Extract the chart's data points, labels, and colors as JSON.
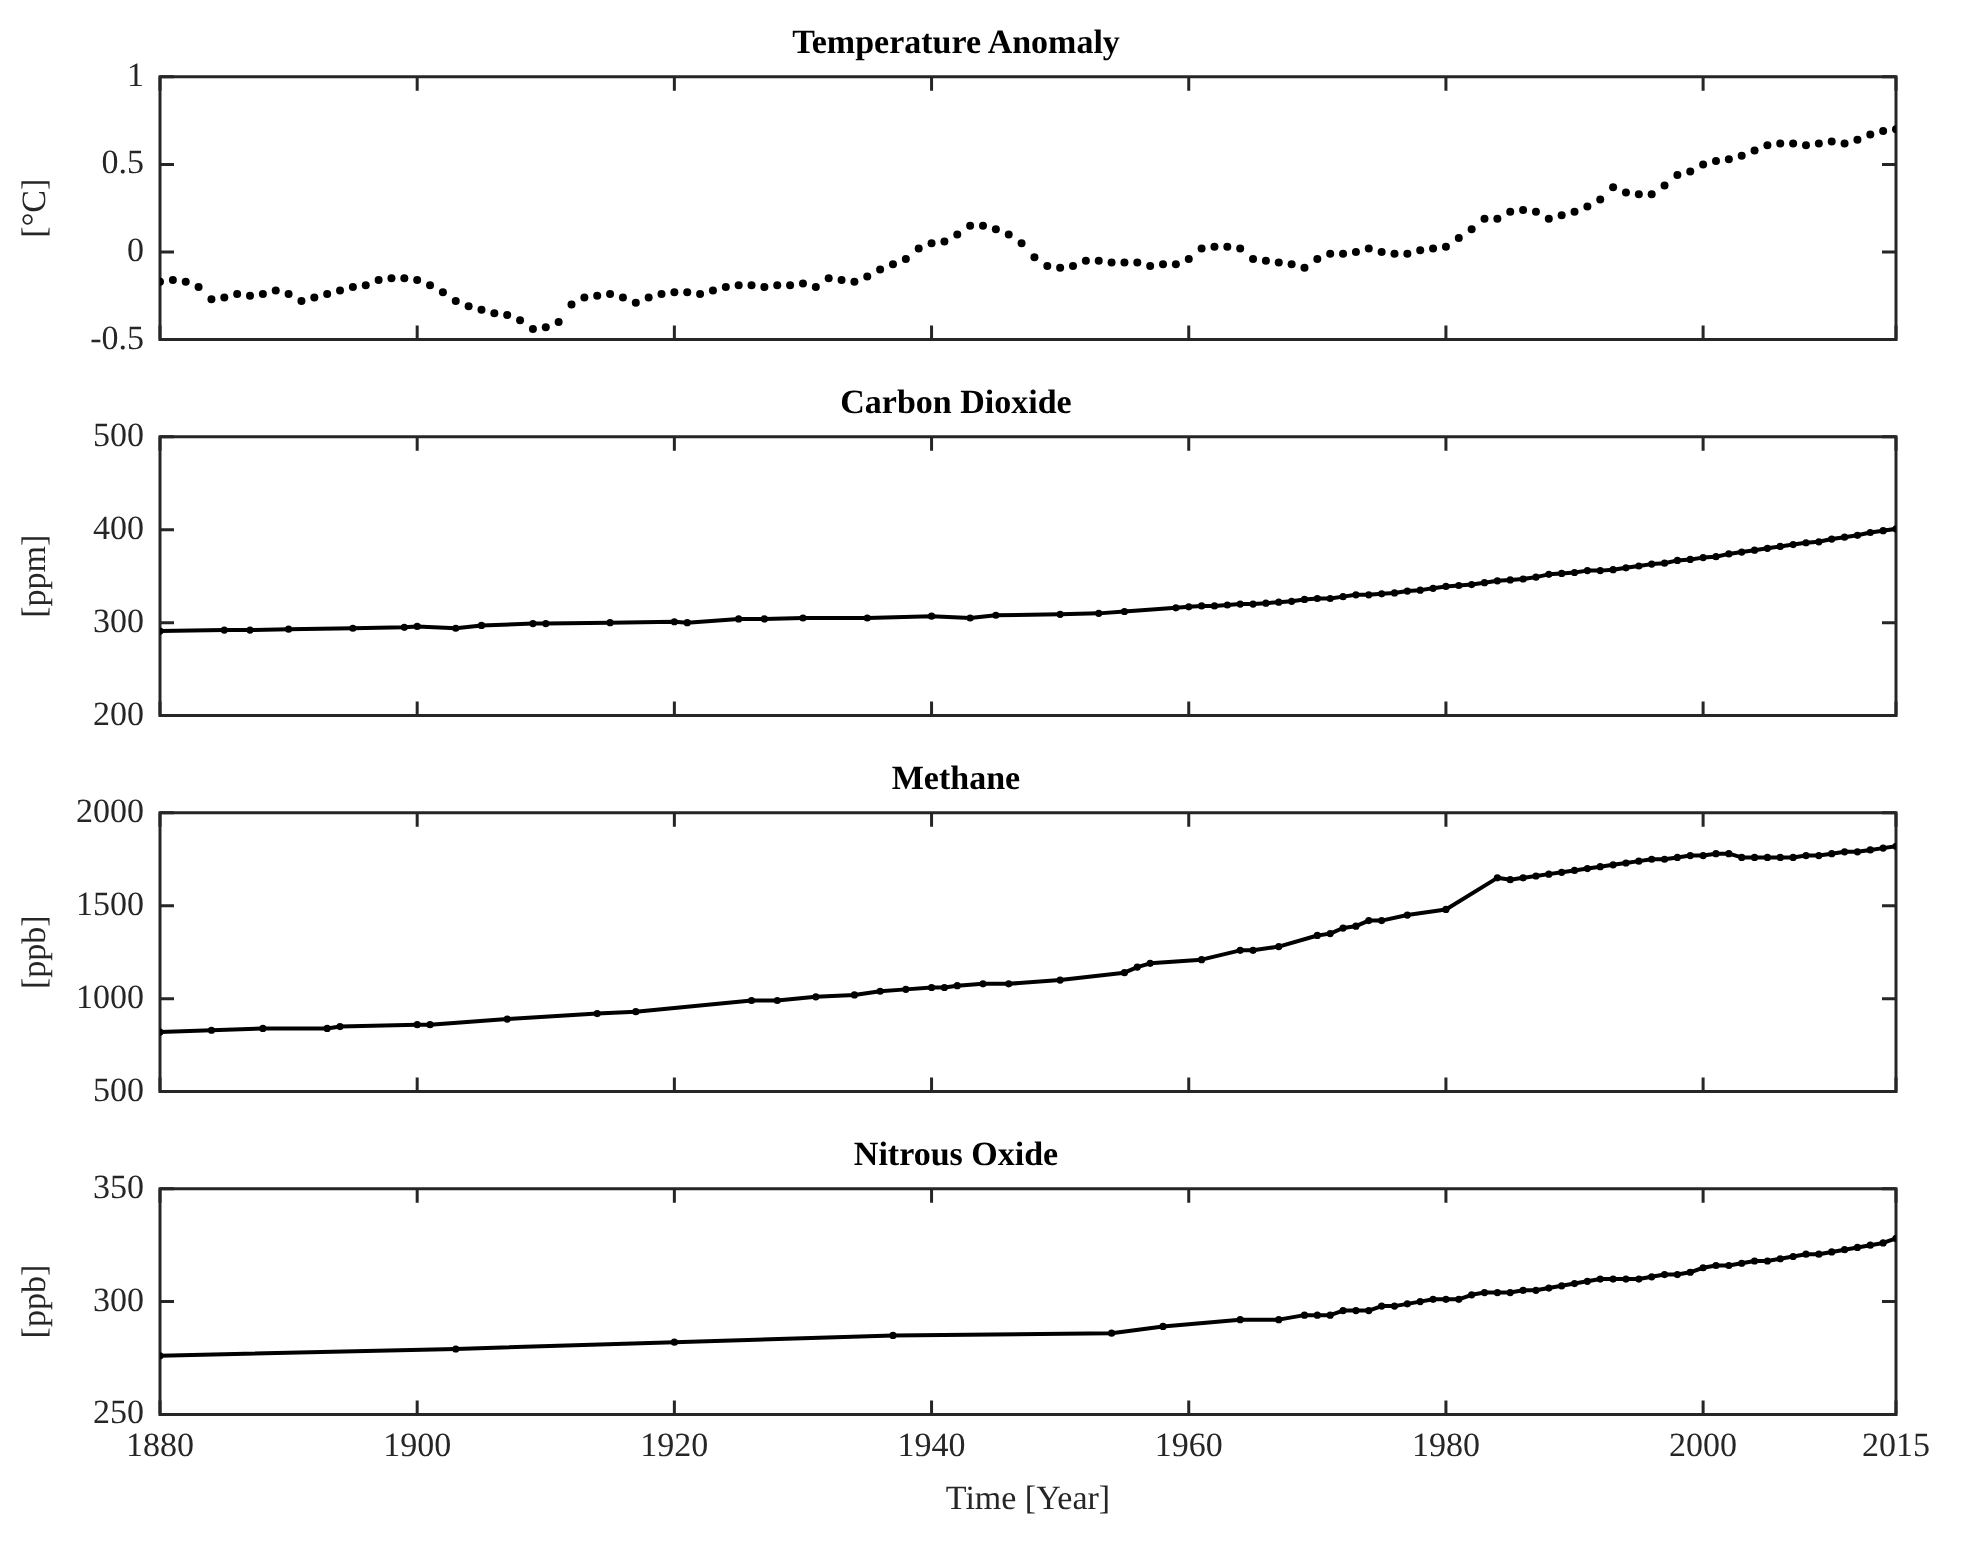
{
  "chart_data": [
    {
      "type": "scatter",
      "title": "Temperature Anomaly",
      "ylabel": "[°C]",
      "marker": "circle",
      "color": "#000000",
      "tick_labels": "y",
      "xlim": [
        1880,
        2015
      ],
      "xticks": [
        {
          "value": 1880,
          "label": null
        },
        {
          "value": 1900,
          "label": null
        },
        {
          "value": 1920,
          "label": null
        },
        {
          "value": 1940,
          "label": null
        },
        {
          "value": 1960,
          "label": null
        },
        {
          "value": 1980,
          "label": null
        },
        {
          "value": 2000,
          "label": null
        },
        {
          "value": 2015,
          "label": null
        }
      ],
      "ylim": [
        -0.5,
        1
      ],
      "yticks": [
        -0.5,
        0,
        0.5,
        1
      ],
      "x": [
        1880,
        1881,
        1882,
        1883,
        1884,
        1885,
        1886,
        1887,
        1888,
        1889,
        1890,
        1891,
        1892,
        1893,
        1894,
        1895,
        1896,
        1897,
        1898,
        1899,
        1900,
        1901,
        1902,
        1903,
        1904,
        1905,
        1906,
        1907,
        1908,
        1909,
        1910,
        1911,
        1912,
        1913,
        1914,
        1915,
        1916,
        1917,
        1918,
        1919,
        1920,
        1921,
        1922,
        1923,
        1924,
        1925,
        1926,
        1927,
        1928,
        1929,
        1930,
        1931,
        1932,
        1933,
        1934,
        1935,
        1936,
        1937,
        1938,
        1939,
        1940,
        1941,
        1942,
        1943,
        1944,
        1945,
        1946,
        1947,
        1948,
        1949,
        1950,
        1951,
        1952,
        1953,
        1954,
        1955,
        1956,
        1957,
        1958,
        1959,
        1960,
        1961,
        1962,
        1963,
        1964,
        1965,
        1966,
        1967,
        1968,
        1969,
        1970,
        1971,
        1972,
        1973,
        1974,
        1975,
        1976,
        1977,
        1978,
        1979,
        1980,
        1981,
        1982,
        1983,
        1984,
        1985,
        1986,
        1987,
        1988,
        1989,
        1990,
        1991,
        1992,
        1993,
        1994,
        1995,
        1996,
        1997,
        1998,
        1999,
        2000,
        2001,
        2002,
        2003,
        2004,
        2005,
        2006,
        2007,
        2008,
        2009,
        2010,
        2011,
        2012,
        2013,
        2014,
        2015
      ],
      "values": [
        -0.17,
        -0.16,
        -0.17,
        -0.2,
        -0.27,
        -0.26,
        -0.24,
        -0.25,
        -0.24,
        -0.22,
        -0.24,
        -0.28,
        -0.26,
        -0.24,
        -0.22,
        -0.2,
        -0.19,
        -0.16,
        -0.15,
        -0.15,
        -0.16,
        -0.19,
        -0.23,
        -0.28,
        -0.31,
        -0.33,
        -0.35,
        -0.36,
        -0.39,
        -0.44,
        -0.43,
        -0.4,
        -0.3,
        -0.26,
        -0.25,
        -0.24,
        -0.26,
        -0.29,
        -0.26,
        -0.24,
        -0.23,
        -0.23,
        -0.24,
        -0.22,
        -0.2,
        -0.19,
        -0.19,
        -0.2,
        -0.19,
        -0.19,
        -0.18,
        -0.2,
        -0.15,
        -0.16,
        -0.17,
        -0.14,
        -0.1,
        -0.07,
        -0.04,
        0.02,
        0.05,
        0.06,
        0.1,
        0.15,
        0.15,
        0.13,
        0.1,
        0.05,
        -0.03,
        -0.08,
        -0.09,
        -0.08,
        -0.05,
        -0.05,
        -0.06,
        -0.06,
        -0.06,
        -0.08,
        -0.07,
        -0.07,
        -0.04,
        0.02,
        0.03,
        0.03,
        0.02,
        -0.04,
        -0.05,
        -0.06,
        -0.07,
        -0.09,
        -0.04,
        -0.01,
        -0.01,
        0,
        0.02,
        0,
        -0.01,
        -0.01,
        0.01,
        0.02,
        0.03,
        0.08,
        0.13,
        0.19,
        0.19,
        0.23,
        0.24,
        0.23,
        0.19,
        0.21,
        0.23,
        0.26,
        0.3,
        0.37,
        0.34,
        0.33,
        0.33,
        0.38,
        0.44,
        0.46,
        0.5,
        0.52,
        0.53,
        0.55,
        0.58,
        0.61,
        0.62,
        0.62,
        0.61,
        0.62,
        0.63,
        0.62,
        0.64,
        0.67,
        0.69,
        0.7
      ]
    },
    {
      "type": "line",
      "title": "Carbon Dioxide",
      "ylabel": "[ppm]",
      "marker": "circle",
      "color": "#000000",
      "tick_labels": "y",
      "xlim": [
        1880,
        2015
      ],
      "xticks": [
        {
          "value": 1880,
          "label": null
        },
        {
          "value": 1900,
          "label": null
        },
        {
          "value": 1920,
          "label": null
        },
        {
          "value": 1940,
          "label": null
        },
        {
          "value": 1960,
          "label": null
        },
        {
          "value": 1980,
          "label": null
        },
        {
          "value": 2000,
          "label": null
        },
        {
          "value": 2015,
          "label": null
        }
      ],
      "ylim": [
        200,
        500
      ],
      "yticks": [
        200,
        300,
        400,
        500
      ],
      "x": [
        1880,
        1885,
        1887,
        1890,
        1895,
        1899,
        1900,
        1903,
        1905,
        1909,
        1910,
        1915,
        1920,
        1921,
        1925,
        1927,
        1930,
        1935,
        1940,
        1943,
        1945,
        1950,
        1953,
        1955,
        1959,
        1960,
        1961,
        1962,
        1963,
        1964,
        1965,
        1966,
        1967,
        1968,
        1969,
        1970,
        1971,
        1972,
        1973,
        1974,
        1975,
        1976,
        1977,
        1978,
        1979,
        1980,
        1981,
        1982,
        1983,
        1984,
        1985,
        1986,
        1987,
        1988,
        1989,
        1990,
        1991,
        1992,
        1993,
        1994,
        1995,
        1996,
        1997,
        1998,
        1999,
        2000,
        2001,
        2002,
        2003,
        2004,
        2005,
        2006,
        2007,
        2008,
        2009,
        2010,
        2011,
        2012,
        2013,
        2014,
        2015
      ],
      "values": [
        291,
        292,
        292,
        293,
        294,
        295,
        296,
        294,
        297,
        299,
        299,
        300,
        301,
        300,
        304,
        304,
        305,
        305,
        307,
        305,
        308,
        309,
        310,
        312,
        316,
        317,
        318,
        318,
        319,
        320,
        320,
        321,
        322,
        323,
        325,
        326,
        326,
        328,
        330,
        330,
        331,
        332,
        334,
        335,
        337,
        339,
        340,
        341,
        343,
        345,
        346,
        347,
        349,
        352,
        353,
        354,
        356,
        356,
        357,
        359,
        361,
        363,
        364,
        367,
        368,
        370,
        371,
        374,
        376,
        378,
        380,
        382,
        384,
        386,
        387,
        390,
        392,
        394,
        397,
        399,
        401
      ]
    },
    {
      "type": "line",
      "title": "Methane",
      "ylabel": "[ppb]",
      "marker": "circle",
      "color": "#000000",
      "tick_labels": "y",
      "xlim": [
        1880,
        2015
      ],
      "xticks": [
        {
          "value": 1880,
          "label": null
        },
        {
          "value": 1900,
          "label": null
        },
        {
          "value": 1920,
          "label": null
        },
        {
          "value": 1940,
          "label": null
        },
        {
          "value": 1960,
          "label": null
        },
        {
          "value": 1980,
          "label": null
        },
        {
          "value": 2000,
          "label": null
        },
        {
          "value": 2015,
          "label": null
        }
      ],
      "ylim": [
        500,
        2000
      ],
      "yticks": [
        500,
        1000,
        1500,
        2000
      ],
      "x": [
        1880,
        1884,
        1888,
        1893,
        1894,
        1900,
        1901,
        1907,
        1914,
        1917,
        1926,
        1928,
        1931,
        1934,
        1936,
        1938,
        1940,
        1941,
        1942,
        1944,
        1946,
        1950,
        1955,
        1956,
        1957,
        1961,
        1964,
        1965,
        1967,
        1970,
        1971,
        1972,
        1973,
        1974,
        1975,
        1977,
        1980,
        1984,
        1985,
        1986,
        1987,
        1988,
        1989,
        1990,
        1991,
        1992,
        1993,
        1994,
        1995,
        1996,
        1997,
        1998,
        1999,
        2000,
        2001,
        2002,
        2003,
        2004,
        2005,
        2006,
        2007,
        2008,
        2009,
        2010,
        2011,
        2012,
        2013,
        2014,
        2015
      ],
      "values": [
        820,
        830,
        840,
        840,
        850,
        860,
        860,
        890,
        920,
        930,
        990,
        990,
        1010,
        1020,
        1040,
        1050,
        1060,
        1060,
        1070,
        1080,
        1080,
        1100,
        1140,
        1170,
        1190,
        1210,
        1260,
        1260,
        1280,
        1340,
        1350,
        1380,
        1390,
        1420,
        1420,
        1450,
        1480,
        1650,
        1640,
        1650,
        1660,
        1670,
        1680,
        1690,
        1700,
        1710,
        1720,
        1730,
        1740,
        1750,
        1750,
        1760,
        1770,
        1770,
        1780,
        1780,
        1760,
        1760,
        1760,
        1760,
        1760,
        1770,
        1770,
        1780,
        1790,
        1790,
        1800,
        1810,
        1820
      ]
    },
    {
      "type": "line",
      "title": "Nitrous Oxide",
      "ylabel": "[ppb]",
      "xlabel": "Time [Year]",
      "marker": "circle",
      "color": "#000000",
      "xlim": [
        1880,
        2015
      ],
      "xticks": [
        1880,
        1900,
        1920,
        1940,
        1960,
        1980,
        2000,
        2015
      ],
      "ylim": [
        250,
        350
      ],
      "yticks": [
        250,
        300,
        350
      ],
      "x": [
        1880,
        1903,
        1920,
        1937,
        1954,
        1958,
        1964,
        1967,
        1969,
        1970,
        1971,
        1972,
        1973,
        1974,
        1975,
        1976,
        1977,
        1978,
        1979,
        1980,
        1981,
        1982,
        1983,
        1984,
        1985,
        1986,
        1987,
        1988,
        1989,
        1990,
        1991,
        1992,
        1993,
        1994,
        1995,
        1996,
        1997,
        1998,
        1999,
        2000,
        2001,
        2002,
        2003,
        2004,
        2005,
        2006,
        2007,
        2008,
        2009,
        2010,
        2011,
        2012,
        2013,
        2014,
        2015
      ],
      "values": [
        276,
        279,
        282,
        285,
        286,
        289,
        292,
        292,
        294,
        294,
        294,
        296,
        296,
        296,
        298,
        298,
        299,
        300,
        301,
        301,
        301,
        303,
        304,
        304,
        304,
        305,
        305,
        306,
        307,
        308,
        309,
        310,
        310,
        310,
        310,
        311,
        312,
        312,
        313,
        315,
        316,
        316,
        317,
        318,
        318,
        319,
        320,
        321,
        321,
        322,
        323,
        324,
        325,
        326,
        328
      ]
    }
  ]
}
